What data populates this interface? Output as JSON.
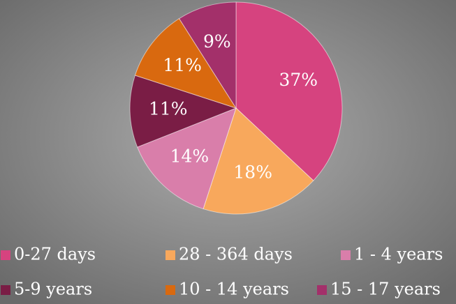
{
  "chart_data": {
    "type": "pie",
    "categories": [
      "0-27 days",
      "28 - 364 days",
      "1 - 4 years",
      "5-9 years",
      "10 - 14 years",
      "15 - 17 years"
    ],
    "values": [
      37,
      18,
      14,
      11,
      11,
      9
    ],
    "value_labels": [
      "37%",
      "18%",
      "14%",
      "11%",
      "11%",
      "9%"
    ],
    "colors": [
      "#d6437f",
      "#f8a85c",
      "#d97eaa",
      "#7a1d45",
      "#d9690f",
      "#a3306a"
    ],
    "legend": "bottom"
  }
}
